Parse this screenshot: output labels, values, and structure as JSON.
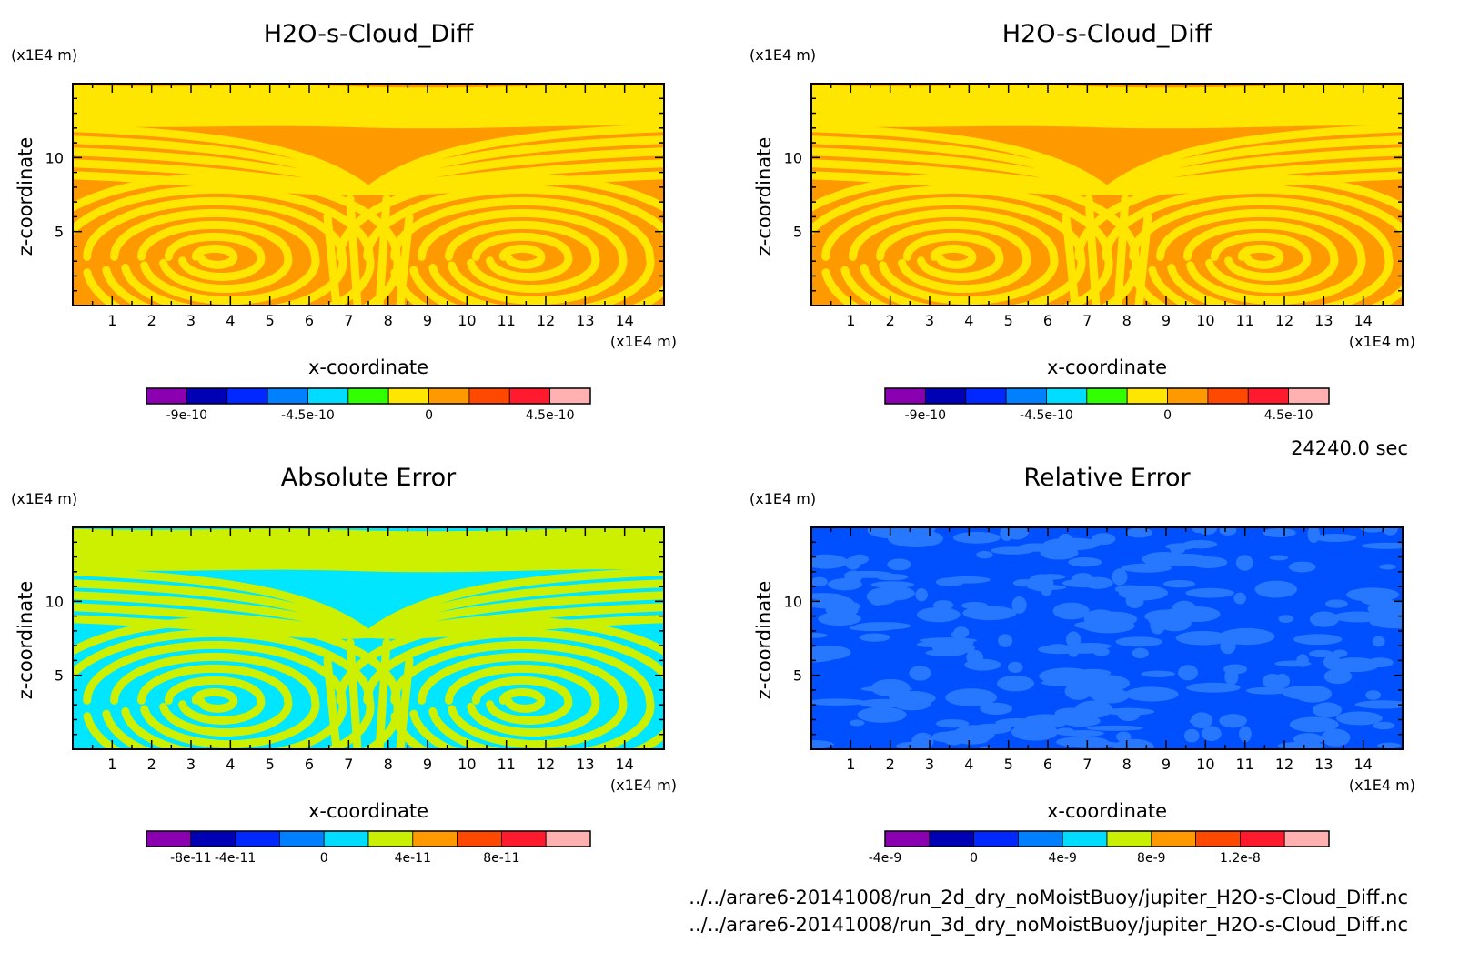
{
  "figure": {
    "time_label": "24240.0 sec",
    "source_files": [
      "../../arare6-20141008/run_2d_dry_noMoistBuoy/jupiter_H2O-s-Cloud_Diff.nc",
      "../../arare6-20141008/run_3d_dry_noMoistBuoy/jupiter_H2O-s-Cloud_Diff.nc"
    ]
  },
  "chart_data": [
    {
      "type": "heatmap",
      "title": "H2O-s-Cloud_Diff",
      "xlabel": "x-coordinate",
      "ylabel": "z-coordinate",
      "x_unit": "(x1E4 m)",
      "y_unit": "(x1E4 m)",
      "xlim": [
        0,
        15
      ],
      "ylim": [
        0,
        15
      ],
      "x_ticks": [
        "1",
        "2",
        "3",
        "4",
        "5",
        "6",
        "7",
        "8",
        "9",
        "10",
        "11",
        "12",
        "13",
        "14"
      ],
      "y_ticks": [
        "5",
        "10"
      ],
      "pattern": "swirl",
      "field_colors": [
        "#ff9900",
        "#ffe600"
      ],
      "colorbar": {
        "colors": [
          "#8a00b0",
          "#0000b4",
          "#0028ff",
          "#0080ff",
          "#00dcff",
          "#32ff00",
          "#ffe600",
          "#ff9900",
          "#ff4800",
          "#ff1a2e",
          "#ffb0b0"
        ],
        "labels": [
          "-9e-10",
          "-4.5e-10",
          "0",
          "4.5e-10"
        ],
        "label_positions": [
          1,
          4,
          7,
          10
        ]
      }
    },
    {
      "type": "heatmap",
      "title": "H2O-s-Cloud_Diff",
      "xlabel": "x-coordinate",
      "ylabel": "z-coordinate",
      "x_unit": "(x1E4 m)",
      "y_unit": "(x1E4 m)",
      "xlim": [
        0,
        15
      ],
      "ylim": [
        0,
        15
      ],
      "x_ticks": [
        "1",
        "2",
        "3",
        "4",
        "5",
        "6",
        "7",
        "8",
        "9",
        "10",
        "11",
        "12",
        "13",
        "14"
      ],
      "y_ticks": [
        "5",
        "10"
      ],
      "pattern": "swirl",
      "field_colors": [
        "#ff9900",
        "#ffe600"
      ],
      "colorbar": {
        "colors": [
          "#8a00b0",
          "#0000b4",
          "#0028ff",
          "#0080ff",
          "#00dcff",
          "#32ff00",
          "#ffe600",
          "#ff9900",
          "#ff4800",
          "#ff1a2e",
          "#ffb0b0"
        ],
        "labels": [
          "-9e-10",
          "-4.5e-10",
          "0",
          "4.5e-10"
        ],
        "label_positions": [
          1,
          4,
          7,
          10
        ]
      }
    },
    {
      "type": "heatmap",
      "title": "Absolute Error",
      "xlabel": "x-coordinate",
      "ylabel": "z-coordinate",
      "x_unit": "(x1E4 m)",
      "y_unit": "(x1E4 m)",
      "xlim": [
        0,
        15
      ],
      "ylim": [
        0,
        15
      ],
      "x_ticks": [
        "1",
        "2",
        "3",
        "4",
        "5",
        "6",
        "7",
        "8",
        "9",
        "10",
        "11",
        "12",
        "13",
        "14"
      ],
      "y_ticks": [
        "5",
        "10"
      ],
      "pattern": "swirl",
      "field_colors": [
        "#00e6ff",
        "#cdf000"
      ],
      "colorbar": {
        "colors": [
          "#8a00b0",
          "#0000b4",
          "#0028ff",
          "#0080ff",
          "#00dcff",
          "#c8f000",
          "#ff9900",
          "#ff4800",
          "#ff1a2e",
          "#ffb0b0"
        ],
        "labels": [
          "-8e-11",
          "-4e-11",
          "0",
          "4e-11",
          "8e-11"
        ],
        "label_positions": [
          1,
          2,
          4,
          6,
          8
        ]
      }
    },
    {
      "type": "heatmap",
      "title": "Relative Error",
      "xlabel": "x-coordinate",
      "ylabel": "z-coordinate",
      "x_unit": "(x1E4 m)",
      "y_unit": "(x1E4 m)",
      "xlim": [
        0,
        15
      ],
      "ylim": [
        0,
        15
      ],
      "x_ticks": [
        "1",
        "2",
        "3",
        "4",
        "5",
        "6",
        "7",
        "8",
        "9",
        "10",
        "11",
        "12",
        "13",
        "14"
      ],
      "y_ticks": [
        "5",
        "10"
      ],
      "pattern": "blotch",
      "field_colors": [
        "#0050ff",
        "#2878ff"
      ],
      "colorbar": {
        "colors": [
          "#8a00b0",
          "#0000b4",
          "#0028ff",
          "#0080ff",
          "#00dcff",
          "#c8f000",
          "#ff9900",
          "#ff4800",
          "#ff1a2e",
          "#ffb0b0"
        ],
        "labels": [
          "-4e-9",
          "0",
          "4e-9",
          "8e-9",
          "1.2e-8"
        ],
        "label_positions": [
          0,
          2,
          4,
          6,
          8
        ]
      }
    }
  ]
}
